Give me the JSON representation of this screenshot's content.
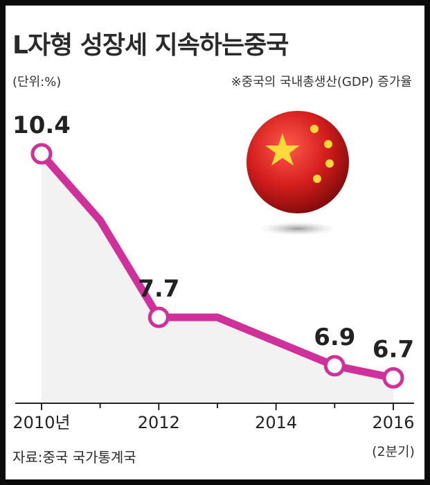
{
  "title": "L자형 성장세 지속하는중국",
  "unit": "(단위:%)",
  "note": "※중국의 국내총생산(GDP) 증가율",
  "source": "자료:중국 국가통계국",
  "icon": "china-flag-icon",
  "colors": {
    "line": "#d0309a",
    "area": "#f2f2f2",
    "flag_red": "#d41d1d",
    "flag_star": "#ffd83a"
  },
  "chart_data": {
    "type": "line",
    "title": "L자형 성장세 지속하는중국",
    "xlabel": "",
    "ylabel": "",
    "x_ticks": [
      "2010년",
      "2012",
      "2014",
      "2016"
    ],
    "x_sublabel": "(2분기)",
    "points": [
      {
        "x": 2010,
        "y": 10.4,
        "label": "10.4"
      },
      {
        "x": 2011,
        "y": 9.3,
        "label": ""
      },
      {
        "x": 2012,
        "y": 7.7,
        "label": "7.7"
      },
      {
        "x": 2013,
        "y": 7.7,
        "label": ""
      },
      {
        "x": 2014,
        "y": 7.3,
        "label": ""
      },
      {
        "x": 2015,
        "y": 6.9,
        "label": "6.9"
      },
      {
        "x": 2016,
        "y": 6.7,
        "label": "6.7"
      }
    ]
  }
}
